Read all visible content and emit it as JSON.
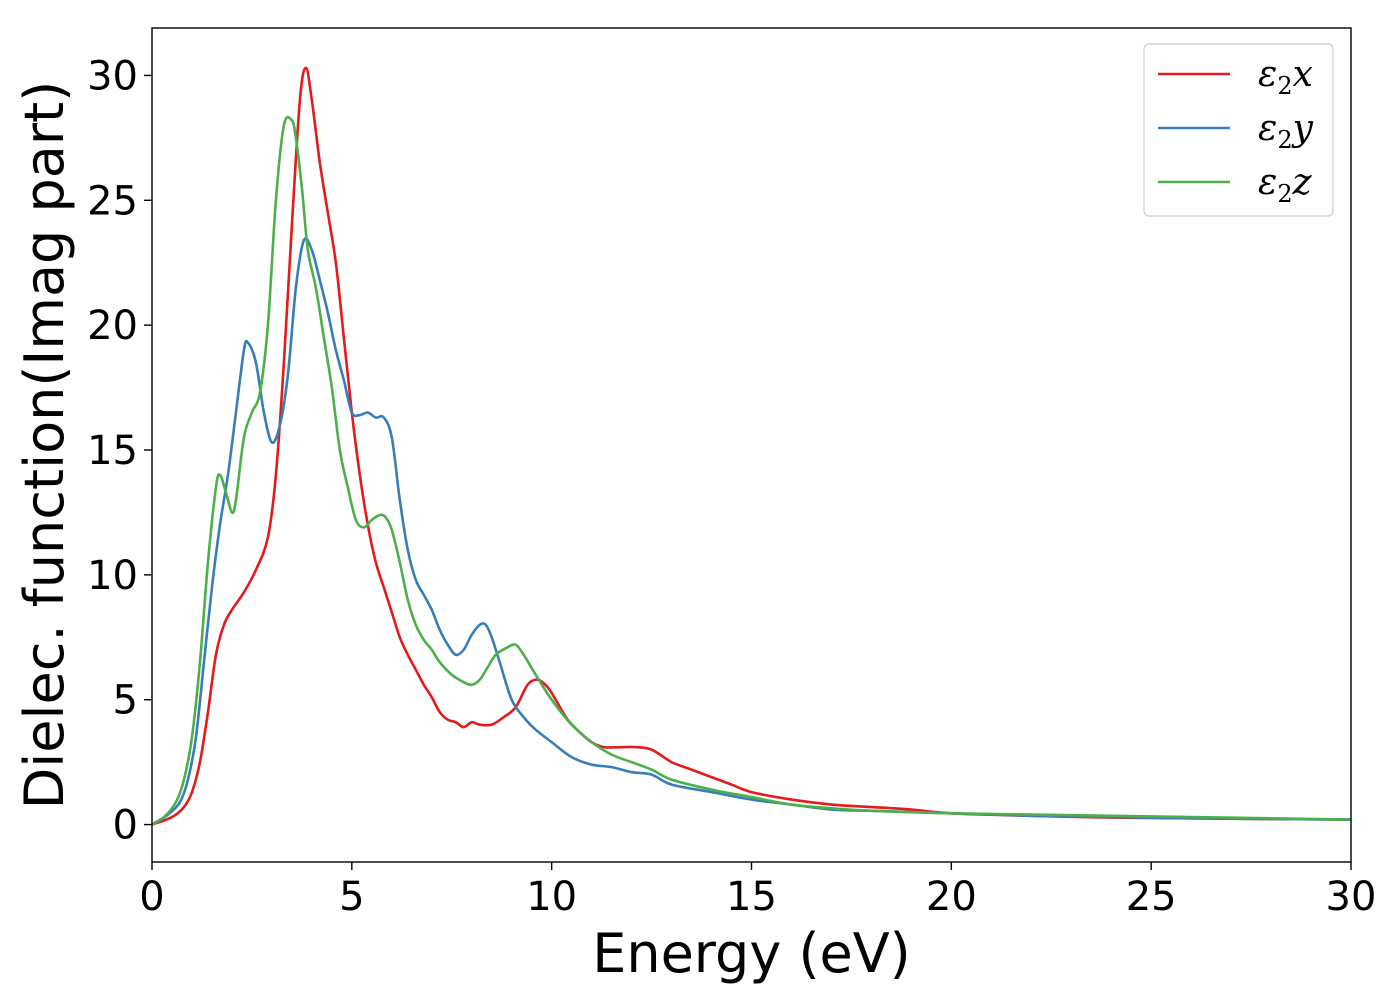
{
  "chart_data": {
    "type": "line",
    "xlabel": "Energy (eV)",
    "ylabel": "Dielec. function(Imag part)",
    "xlim": [
      0,
      30
    ],
    "ylim": [
      -1.5,
      31.9
    ],
    "xticks": [
      0,
      5,
      10,
      15,
      20,
      25,
      30
    ],
    "yticks": [
      0,
      5,
      10,
      15,
      20,
      25,
      30
    ],
    "grid": false,
    "legend_position": "top-right",
    "series": [
      {
        "name": "ε2x",
        "legend_base": "ε",
        "legend_sub": "2",
        "legend_tail": "x",
        "color": "#e41a1c",
        "x": [
          0,
          0.5,
          0.8,
          1.0,
          1.2,
          1.4,
          1.6,
          1.8,
          2.0,
          2.3,
          2.6,
          2.9,
          3.1,
          3.3,
          3.5,
          3.7,
          3.85,
          4.0,
          4.2,
          4.4,
          4.6,
          4.8,
          5.0,
          5.2,
          5.4,
          5.6,
          5.8,
          6.0,
          6.2,
          6.4,
          6.6,
          6.8,
          7.0,
          7.2,
          7.4,
          7.6,
          7.8,
          8.0,
          8.2,
          8.5,
          8.8,
          9.1,
          9.4,
          9.65,
          9.9,
          10.1,
          10.4,
          10.7,
          11.0,
          11.3,
          11.7,
          12.1,
          12.5,
          13.0,
          13.5,
          14.0,
          14.5,
          15.0,
          16.0,
          17.0,
          18.0,
          19.0,
          20.0,
          22.0,
          24.0,
          26.0,
          28.0,
          30.0
        ],
        "y": [
          0,
          0.3,
          0.7,
          1.3,
          2.5,
          4.5,
          6.8,
          8.0,
          8.6,
          9.3,
          10.2,
          11.5,
          14.0,
          18.5,
          24.0,
          29.0,
          30.3,
          29.0,
          26.5,
          24.5,
          22.5,
          19.5,
          16.5,
          14.0,
          12.0,
          10.5,
          9.5,
          8.5,
          7.5,
          6.8,
          6.2,
          5.6,
          5.1,
          4.5,
          4.2,
          4.1,
          3.9,
          4.1,
          4.0,
          4.0,
          4.3,
          4.7,
          5.6,
          5.8,
          5.5,
          5.0,
          4.2,
          3.7,
          3.3,
          3.1,
          3.1,
          3.1,
          3.0,
          2.5,
          2.2,
          1.9,
          1.6,
          1.3,
          1.0,
          0.8,
          0.7,
          0.6,
          0.45,
          0.35,
          0.28,
          0.25,
          0.22,
          0.2
        ]
      },
      {
        "name": "ε2y",
        "legend_base": "ε",
        "legend_sub": "2",
        "legend_tail": "y",
        "color": "#377eb8",
        "x": [
          0,
          0.4,
          0.7,
          0.9,
          1.1,
          1.3,
          1.5,
          1.7,
          1.9,
          2.1,
          2.3,
          2.4,
          2.6,
          2.8,
          3.0,
          3.2,
          3.4,
          3.6,
          3.8,
          4.0,
          4.2,
          4.4,
          4.6,
          4.8,
          5.0,
          5.2,
          5.4,
          5.6,
          5.8,
          6.0,
          6.2,
          6.4,
          6.6,
          6.8,
          7.0,
          7.2,
          7.4,
          7.6,
          7.8,
          8.0,
          8.2,
          8.35,
          8.5,
          8.7,
          9.0,
          9.3,
          9.6,
          10.0,
          10.5,
          11.0,
          11.5,
          12.0,
          12.5,
          13.0,
          14.0,
          15.0,
          16.0,
          17.0,
          18.0,
          20.0,
          22.0,
          24.0,
          26.0,
          28.0,
          30.0
        ],
        "y": [
          0,
          0.4,
          0.9,
          1.8,
          3.5,
          6.5,
          9.5,
          12.0,
          14.0,
          16.5,
          19.0,
          19.3,
          18.5,
          16.5,
          15.3,
          16.0,
          18.0,
          21.5,
          23.4,
          23.0,
          21.8,
          20.5,
          19.0,
          17.8,
          16.5,
          16.4,
          16.5,
          16.3,
          16.3,
          15.5,
          13.0,
          11.0,
          9.8,
          9.2,
          8.6,
          7.8,
          7.2,
          6.8,
          7.0,
          7.6,
          8.0,
          8.0,
          7.5,
          6.5,
          5.0,
          4.3,
          3.8,
          3.3,
          2.7,
          2.4,
          2.3,
          2.1,
          2.0,
          1.6,
          1.3,
          1.0,
          0.8,
          0.6,
          0.55,
          0.45,
          0.35,
          0.3,
          0.25,
          0.22,
          0.2
        ]
      },
      {
        "name": "ε2z",
        "legend_base": "ε",
        "legend_sub": "2",
        "legend_tail": "z",
        "color": "#4daf4a",
        "x": [
          0,
          0.3,
          0.6,
          0.8,
          1.0,
          1.2,
          1.4,
          1.6,
          1.7,
          1.85,
          2.0,
          2.1,
          2.3,
          2.5,
          2.7,
          2.9,
          3.1,
          3.3,
          3.5,
          3.6,
          3.75,
          3.9,
          4.1,
          4.3,
          4.5,
          4.7,
          4.9,
          5.1,
          5.3,
          5.5,
          5.7,
          5.85,
          6.0,
          6.2,
          6.4,
          6.6,
          6.8,
          7.0,
          7.2,
          7.5,
          7.8,
          8.0,
          8.2,
          8.4,
          8.6,
          8.9,
          9.1,
          9.3,
          9.6,
          10.0,
          10.5,
          11.0,
          11.5,
          12.0,
          12.5,
          13.0,
          14.0,
          15.0,
          16.0,
          17.0,
          18.0,
          20.0,
          22.0,
          24.0,
          26.0,
          28.0,
          30.0
        ],
        "y": [
          0,
          0.3,
          0.9,
          1.8,
          3.5,
          6.5,
          10.5,
          13.5,
          14.0,
          13.3,
          12.5,
          13.0,
          15.5,
          16.5,
          17.3,
          20.0,
          25.0,
          28.0,
          28.2,
          27.5,
          25.5,
          23.0,
          21.5,
          19.5,
          17.5,
          15.0,
          13.5,
          12.2,
          11.9,
          12.2,
          12.4,
          12.3,
          11.8,
          10.5,
          9.0,
          8.0,
          7.4,
          7.0,
          6.5,
          6.0,
          5.7,
          5.6,
          5.8,
          6.3,
          6.8,
          7.1,
          7.2,
          6.8,
          6.0,
          5.0,
          4.0,
          3.3,
          2.8,
          2.5,
          2.2,
          1.8,
          1.4,
          1.1,
          0.8,
          0.65,
          0.55,
          0.45,
          0.4,
          0.35,
          0.3,
          0.25,
          0.2
        ]
      }
    ]
  }
}
